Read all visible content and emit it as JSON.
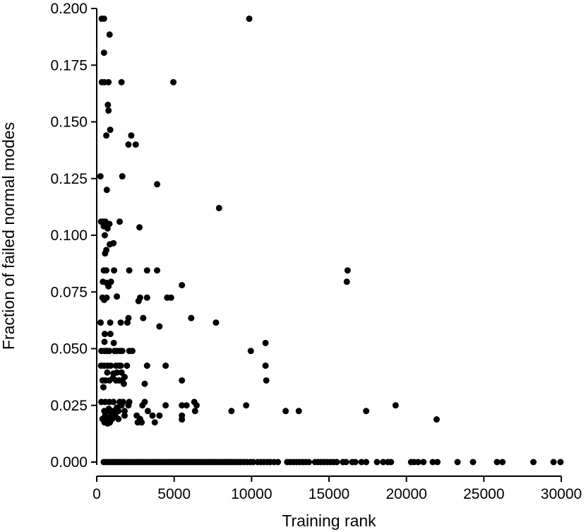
{
  "chart_data": {
    "type": "scatter",
    "xlabel": "Training rank",
    "ylabel": "Fraction of failed normal modes",
    "xlim": [
      0,
      30000
    ],
    "ylim": [
      0,
      0.2
    ],
    "xticks": [
      "0",
      "5000",
      "10000",
      "15000",
      "20000",
      "25000",
      "30000"
    ],
    "yticks": [
      "0.000",
      "0.025",
      "0.050",
      "0.075",
      "0.100",
      "0.125",
      "0.150",
      "0.175",
      "0.200"
    ],
    "xtick_values": [
      0,
      5000,
      10000,
      15000,
      20000,
      25000,
      30000
    ],
    "ytick_values": [
      0,
      0.025,
      0.05,
      0.075,
      0.1,
      0.125,
      0.15,
      0.175,
      0.2
    ],
    "grid": false,
    "marker_color": "#000000",
    "points": [
      [
        320,
        0.1955
      ],
      [
        470,
        0.1955
      ],
      [
        9850,
        0.1955
      ],
      [
        830,
        0.1885
      ],
      [
        470,
        0.1805
      ],
      [
        330,
        0.1675
      ],
      [
        500,
        0.1675
      ],
      [
        760,
        0.1675
      ],
      [
        1600,
        0.1675
      ],
      [
        4950,
        0.1675
      ],
      [
        720,
        0.1575
      ],
      [
        760,
        0.155
      ],
      [
        870,
        0.1465
      ],
      [
        620,
        0.144
      ],
      [
        2230,
        0.144
      ],
      [
        2050,
        0.14
      ],
      [
        2520,
        0.14
      ],
      [
        240,
        0.126
      ],
      [
        1650,
        0.126
      ],
      [
        3900,
        0.1225
      ],
      [
        650,
        0.12
      ],
      [
        7900,
        0.112
      ],
      [
        280,
        0.106
      ],
      [
        380,
        0.106
      ],
      [
        560,
        0.106
      ],
      [
        820,
        0.105
      ],
      [
        1480,
        0.106
      ],
      [
        450,
        0.104
      ],
      [
        700,
        0.103
      ],
      [
        2760,
        0.1035
      ],
      [
        520,
        0.1
      ],
      [
        1080,
        0.0965
      ],
      [
        840,
        0.096
      ],
      [
        620,
        0.0935
      ],
      [
        540,
        0.092
      ],
      [
        460,
        0.0845
      ],
      [
        620,
        0.0845
      ],
      [
        1120,
        0.0845
      ],
      [
        2100,
        0.0845
      ],
      [
        3250,
        0.0845
      ],
      [
        3900,
        0.0845
      ],
      [
        16200,
        0.0845
      ],
      [
        400,
        0.0795
      ],
      [
        640,
        0.079
      ],
      [
        920,
        0.0795
      ],
      [
        16150,
        0.0795
      ],
      [
        5500,
        0.078
      ],
      [
        760,
        0.0775
      ],
      [
        1300,
        0.073
      ],
      [
        2800,
        0.0725
      ],
      [
        3250,
        0.0725
      ],
      [
        4550,
        0.0725
      ],
      [
        4800,
        0.0725
      ],
      [
        370,
        0.0725
      ],
      [
        480,
        0.0715
      ],
      [
        640,
        0.0725
      ],
      [
        2700,
        0.071
      ],
      [
        2050,
        0.0635
      ],
      [
        3000,
        0.0635
      ],
      [
        6100,
        0.0635
      ],
      [
        250,
        0.0615
      ],
      [
        870,
        0.0615
      ],
      [
        1550,
        0.0615
      ],
      [
        1980,
        0.0615
      ],
      [
        7700,
        0.0615
      ],
      [
        4050,
        0.0598
      ],
      [
        520,
        0.0565
      ],
      [
        880,
        0.0565
      ],
      [
        500,
        0.053
      ],
      [
        1100,
        0.0525
      ],
      [
        10900,
        0.0525
      ],
      [
        300,
        0.049
      ],
      [
        500,
        0.049
      ],
      [
        650,
        0.049
      ],
      [
        820,
        0.049
      ],
      [
        1150,
        0.049
      ],
      [
        1300,
        0.049
      ],
      [
        1500,
        0.049
      ],
      [
        1650,
        0.049
      ],
      [
        2100,
        0.049
      ],
      [
        2300,
        0.049
      ],
      [
        9950,
        0.049
      ],
      [
        280,
        0.0425
      ],
      [
        480,
        0.0425
      ],
      [
        700,
        0.0425
      ],
      [
        900,
        0.0425
      ],
      [
        1250,
        0.0425
      ],
      [
        1450,
        0.0425
      ],
      [
        1550,
        0.0425
      ],
      [
        1950,
        0.0425
      ],
      [
        3250,
        0.0425
      ],
      [
        4450,
        0.0425
      ],
      [
        10900,
        0.0425
      ],
      [
        680,
        0.0395
      ],
      [
        1080,
        0.039
      ],
      [
        1300,
        0.0395
      ],
      [
        1600,
        0.0395
      ],
      [
        1800,
        0.0375
      ],
      [
        1050,
        0.037
      ],
      [
        1450,
        0.036
      ],
      [
        380,
        0.036
      ],
      [
        560,
        0.036
      ],
      [
        820,
        0.036
      ],
      [
        1250,
        0.036
      ],
      [
        1650,
        0.036
      ],
      [
        5500,
        0.036
      ],
      [
        10950,
        0.036
      ],
      [
        1750,
        0.0345
      ],
      [
        3100,
        0.0345
      ],
      [
        430,
        0.033
      ],
      [
        300,
        0.0265
      ],
      [
        560,
        0.0265
      ],
      [
        820,
        0.0265
      ],
      [
        1080,
        0.0265
      ],
      [
        1480,
        0.0265
      ],
      [
        1700,
        0.0265
      ],
      [
        2100,
        0.0265
      ],
      [
        3100,
        0.0265
      ],
      [
        6300,
        0.0265
      ],
      [
        1600,
        0.025
      ],
      [
        2050,
        0.025
      ],
      [
        2950,
        0.025
      ],
      [
        4450,
        0.025
      ],
      [
        5500,
        0.025
      ],
      [
        5800,
        0.025
      ],
      [
        6450,
        0.025
      ],
      [
        9650,
        0.025
      ],
      [
        19300,
        0.025
      ],
      [
        1300,
        0.024
      ],
      [
        780,
        0.0235
      ],
      [
        490,
        0.0225
      ],
      [
        800,
        0.0225
      ],
      [
        1050,
        0.0225
      ],
      [
        1400,
        0.0225
      ],
      [
        1800,
        0.0225
      ],
      [
        3300,
        0.0225
      ],
      [
        6350,
        0.0225
      ],
      [
        8700,
        0.0225
      ],
      [
        12200,
        0.0225
      ],
      [
        13050,
        0.0225
      ],
      [
        17400,
        0.0225
      ],
      [
        550,
        0.0205
      ],
      [
        950,
        0.0205
      ],
      [
        1200,
        0.0205
      ],
      [
        1800,
        0.0205
      ],
      [
        2580,
        0.0205
      ],
      [
        3600,
        0.0205
      ],
      [
        4050,
        0.0205
      ],
      [
        5500,
        0.0205
      ],
      [
        370,
        0.019
      ],
      [
        650,
        0.019
      ],
      [
        1000,
        0.019
      ],
      [
        1400,
        0.019
      ],
      [
        2800,
        0.019
      ],
      [
        5500,
        0.0188
      ],
      [
        21950,
        0.0188
      ],
      [
        500,
        0.0175
      ],
      [
        850,
        0.0175
      ],
      [
        2650,
        0.0175
      ],
      [
        2900,
        0.0175
      ],
      [
        3750,
        0.0175
      ],
      [
        700,
        0.017
      ],
      [
        450,
        0
      ],
      [
        600,
        0
      ],
      [
        750,
        0
      ],
      [
        900,
        0
      ],
      [
        1050,
        0
      ],
      [
        1200,
        0
      ],
      [
        1350,
        0
      ],
      [
        1500,
        0
      ],
      [
        1650,
        0
      ],
      [
        1800,
        0
      ],
      [
        1950,
        0
      ],
      [
        2100,
        0
      ],
      [
        2250,
        0
      ],
      [
        2400,
        0
      ],
      [
        2550,
        0
      ],
      [
        2700,
        0
      ],
      [
        2850,
        0
      ],
      [
        3000,
        0
      ],
      [
        3150,
        0
      ],
      [
        3300,
        0
      ],
      [
        3450,
        0
      ],
      [
        3600,
        0
      ],
      [
        3750,
        0
      ],
      [
        3900,
        0
      ],
      [
        4050,
        0
      ],
      [
        4200,
        0
      ],
      [
        4350,
        0
      ],
      [
        4500,
        0
      ],
      [
        4650,
        0
      ],
      [
        4800,
        0
      ],
      [
        4950,
        0
      ],
      [
        5100,
        0
      ],
      [
        5250,
        0
      ],
      [
        5400,
        0
      ],
      [
        5550,
        0
      ],
      [
        5700,
        0
      ],
      [
        5850,
        0
      ],
      [
        6000,
        0
      ],
      [
        6150,
        0
      ],
      [
        6300,
        0
      ],
      [
        6450,
        0
      ],
      [
        6600,
        0
      ],
      [
        6750,
        0
      ],
      [
        6900,
        0
      ],
      [
        7050,
        0
      ],
      [
        7200,
        0
      ],
      [
        7350,
        0
      ],
      [
        7500,
        0
      ],
      [
        7650,
        0
      ],
      [
        7800,
        0
      ],
      [
        7950,
        0
      ],
      [
        8100,
        0
      ],
      [
        8250,
        0
      ],
      [
        8400,
        0
      ],
      [
        8550,
        0
      ],
      [
        8700,
        0
      ],
      [
        8850,
        0
      ],
      [
        9000,
        0
      ],
      [
        9150,
        0
      ],
      [
        9300,
        0
      ],
      [
        9500,
        0
      ],
      [
        9700,
        0
      ],
      [
        9900,
        0
      ],
      [
        10100,
        0
      ],
      [
        10400,
        0
      ],
      [
        10600,
        0
      ],
      [
        10800,
        0
      ],
      [
        11000,
        0
      ],
      [
        11200,
        0
      ],
      [
        11450,
        0
      ],
      [
        11700,
        0
      ],
      [
        12300,
        0
      ],
      [
        12500,
        0
      ],
      [
        12700,
        0
      ],
      [
        12900,
        0
      ],
      [
        13100,
        0
      ],
      [
        13300,
        0
      ],
      [
        13500,
        0
      ],
      [
        13700,
        0
      ],
      [
        14100,
        0
      ],
      [
        14300,
        0
      ],
      [
        14500,
        0
      ],
      [
        14700,
        0
      ],
      [
        14900,
        0
      ],
      [
        15100,
        0
      ],
      [
        15300,
        0
      ],
      [
        15500,
        0
      ],
      [
        15900,
        0
      ],
      [
        16100,
        0
      ],
      [
        16500,
        0
      ],
      [
        16700,
        0
      ],
      [
        17100,
        0
      ],
      [
        17400,
        0
      ],
      [
        18100,
        0
      ],
      [
        18500,
        0
      ],
      [
        18800,
        0
      ],
      [
        19000,
        0
      ],
      [
        20300,
        0
      ],
      [
        20500,
        0
      ],
      [
        20750,
        0
      ],
      [
        21100,
        0
      ],
      [
        21700,
        0
      ],
      [
        22000,
        0
      ],
      [
        23300,
        0
      ],
      [
        24300,
        0
      ],
      [
        25850,
        0
      ],
      [
        26200,
        0
      ],
      [
        28200,
        0
      ],
      [
        29500,
        0
      ],
      [
        29950,
        0
      ]
    ]
  }
}
